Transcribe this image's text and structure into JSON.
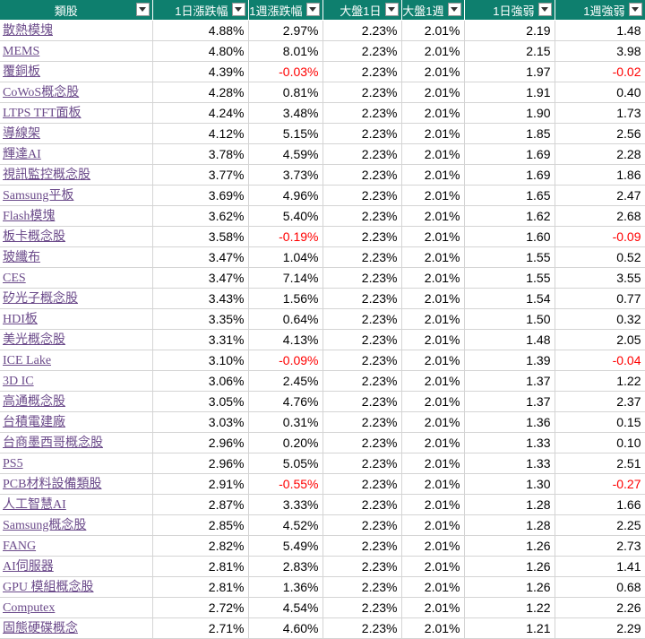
{
  "colors": {
    "header_bg": "#0e7f6e",
    "link": "#6b4a8a",
    "negative": "#ff0000"
  },
  "headers": [
    "類股",
    "1日漲跌幅",
    "1週漲跌幅",
    "大盤1日",
    "大盤1週",
    "1日強弱",
    "1週強弱"
  ],
  "rows": [
    {
      "name": "散熱模塊",
      "d1": "4.88%",
      "w1": "2.97%",
      "m1": "2.23%",
      "mw": "2.01%",
      "s1": "2.19",
      "sw": "1.48"
    },
    {
      "name": "MEMS",
      "d1": "4.80%",
      "w1": "8.01%",
      "m1": "2.23%",
      "mw": "2.01%",
      "s1": "2.15",
      "sw": "3.98"
    },
    {
      "name": "覆銅板",
      "d1": "4.39%",
      "w1": "-0.03%",
      "m1": "2.23%",
      "mw": "2.01%",
      "s1": "1.97",
      "sw": "-0.02"
    },
    {
      "name": "CoWoS概念股",
      "d1": "4.28%",
      "w1": "0.81%",
      "m1": "2.23%",
      "mw": "2.01%",
      "s1": "1.91",
      "sw": "0.40"
    },
    {
      "name": "LTPS TFT面板",
      "d1": "4.24%",
      "w1": "3.48%",
      "m1": "2.23%",
      "mw": "2.01%",
      "s1": "1.90",
      "sw": "1.73"
    },
    {
      "name": "導線架",
      "d1": "4.12%",
      "w1": "5.15%",
      "m1": "2.23%",
      "mw": "2.01%",
      "s1": "1.85",
      "sw": "2.56"
    },
    {
      "name": "輝達AI",
      "d1": "3.78%",
      "w1": "4.59%",
      "m1": "2.23%",
      "mw": "2.01%",
      "s1": "1.69",
      "sw": "2.28"
    },
    {
      "name": "視訊監控概念股",
      "d1": "3.77%",
      "w1": "3.73%",
      "m1": "2.23%",
      "mw": "2.01%",
      "s1": "1.69",
      "sw": "1.86"
    },
    {
      "name": "Samsung平板",
      "d1": "3.69%",
      "w1": "4.96%",
      "m1": "2.23%",
      "mw": "2.01%",
      "s1": "1.65",
      "sw": "2.47"
    },
    {
      "name": "Flash模塊",
      "d1": "3.62%",
      "w1": "5.40%",
      "m1": "2.23%",
      "mw": "2.01%",
      "s1": "1.62",
      "sw": "2.68"
    },
    {
      "name": "板卡概念股",
      "d1": "3.58%",
      "w1": "-0.19%",
      "m1": "2.23%",
      "mw": "2.01%",
      "s1": "1.60",
      "sw": "-0.09"
    },
    {
      "name": "玻纖布",
      "d1": "3.47%",
      "w1": "1.04%",
      "m1": "2.23%",
      "mw": "2.01%",
      "s1": "1.55",
      "sw": "0.52"
    },
    {
      "name": "CES",
      "d1": "3.47%",
      "w1": "7.14%",
      "m1": "2.23%",
      "mw": "2.01%",
      "s1": "1.55",
      "sw": "3.55"
    },
    {
      "name": "矽光子概念股",
      "d1": "3.43%",
      "w1": "1.56%",
      "m1": "2.23%",
      "mw": "2.01%",
      "s1": "1.54",
      "sw": "0.77"
    },
    {
      "name": "HDI板",
      "d1": "3.35%",
      "w1": "0.64%",
      "m1": "2.23%",
      "mw": "2.01%",
      "s1": "1.50",
      "sw": "0.32"
    },
    {
      "name": "美光概念股",
      "d1": "3.31%",
      "w1": "4.13%",
      "m1": "2.23%",
      "mw": "2.01%",
      "s1": "1.48",
      "sw": "2.05"
    },
    {
      "name": "ICE Lake",
      "d1": "3.10%",
      "w1": "-0.09%",
      "m1": "2.23%",
      "mw": "2.01%",
      "s1": "1.39",
      "sw": "-0.04"
    },
    {
      "name": "3D IC",
      "d1": "3.06%",
      "w1": "2.45%",
      "m1": "2.23%",
      "mw": "2.01%",
      "s1": "1.37",
      "sw": "1.22"
    },
    {
      "name": "高通概念股",
      "d1": "3.05%",
      "w1": "4.76%",
      "m1": "2.23%",
      "mw": "2.01%",
      "s1": "1.37",
      "sw": "2.37"
    },
    {
      "name": "台積電建廠",
      "d1": "3.03%",
      "w1": "0.31%",
      "m1": "2.23%",
      "mw": "2.01%",
      "s1": "1.36",
      "sw": "0.15"
    },
    {
      "name": "台商墨西哥概念股",
      "d1": "2.96%",
      "w1": "0.20%",
      "m1": "2.23%",
      "mw": "2.01%",
      "s1": "1.33",
      "sw": "0.10"
    },
    {
      "name": "PS5",
      "d1": "2.96%",
      "w1": "5.05%",
      "m1": "2.23%",
      "mw": "2.01%",
      "s1": "1.33",
      "sw": "2.51"
    },
    {
      "name": "PCB材料設備類股",
      "d1": "2.91%",
      "w1": "-0.55%",
      "m1": "2.23%",
      "mw": "2.01%",
      "s1": "1.30",
      "sw": "-0.27"
    },
    {
      "name": "人工智慧AI",
      "d1": "2.87%",
      "w1": "3.33%",
      "m1": "2.23%",
      "mw": "2.01%",
      "s1": "1.28",
      "sw": "1.66"
    },
    {
      "name": "Samsung概念股",
      "d1": "2.85%",
      "w1": "4.52%",
      "m1": "2.23%",
      "mw": "2.01%",
      "s1": "1.28",
      "sw": "2.25"
    },
    {
      "name": "FANG",
      "d1": "2.82%",
      "w1": "5.49%",
      "m1": "2.23%",
      "mw": "2.01%",
      "s1": "1.26",
      "sw": "2.73"
    },
    {
      "name": "AI伺服器",
      "d1": "2.81%",
      "w1": "2.83%",
      "m1": "2.23%",
      "mw": "2.01%",
      "s1": "1.26",
      "sw": "1.41"
    },
    {
      "name": "GPU 模組概念股",
      "d1": "2.81%",
      "w1": "1.36%",
      "m1": "2.23%",
      "mw": "2.01%",
      "s1": "1.26",
      "sw": "0.68"
    },
    {
      "name": "Computex",
      "d1": "2.72%",
      "w1": "4.54%",
      "m1": "2.23%",
      "mw": "2.01%",
      "s1": "1.22",
      "sw": "2.26"
    },
    {
      "name": "固態硬碟概念",
      "d1": "2.71%",
      "w1": "4.60%",
      "m1": "2.23%",
      "mw": "2.01%",
      "s1": "1.21",
      "sw": "2.29"
    }
  ]
}
